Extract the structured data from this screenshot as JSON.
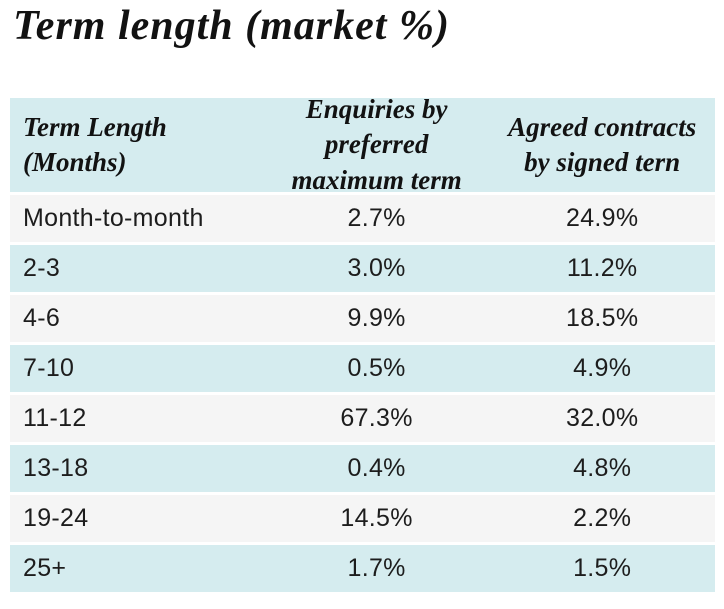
{
  "page": {
    "title": "Term length (market %)"
  },
  "colors": {
    "accent_blue": "#d5ecef",
    "row_gray": "#f5f5f5",
    "text": "#1d1d1d",
    "background": "#ffffff"
  },
  "table": {
    "columns": [
      {
        "line1": "Term Length",
        "line2": "(Months)"
      },
      {
        "line1": "Enquiries by preferred",
        "line2": "maximum term"
      },
      {
        "line1": "Agreed contracts",
        "line2": "by signed tern"
      }
    ],
    "rows": [
      {
        "term": "Month-to-month",
        "enquiries": "2.7%",
        "agreed": "24.9%"
      },
      {
        "term": "2-3",
        "enquiries": "3.0%",
        "agreed": "11.2%"
      },
      {
        "term": "4-6",
        "enquiries": "9.9%",
        "agreed": "18.5%"
      },
      {
        "term": "7-10",
        "enquiries": "0.5%",
        "agreed": "4.9%"
      },
      {
        "term": "11-12",
        "enquiries": "67.3%",
        "agreed": "32.0%"
      },
      {
        "term": "13-18",
        "enquiries": "0.4%",
        "agreed": "4.8%"
      },
      {
        "term": "19-24",
        "enquiries": "14.5%",
        "agreed": "2.2%"
      },
      {
        "term": "25+",
        "enquiries": "1.7%",
        "agreed": "1.5%"
      }
    ]
  },
  "chart_data": {
    "type": "table",
    "title": "Term length (market %)",
    "columns": [
      "Term Length (Months)",
      "Enquiries by preferred maximum term",
      "Agreed contracts by signed tern"
    ],
    "categories": [
      "Month-to-month",
      "2-3",
      "4-6",
      "7-10",
      "11-12",
      "13-18",
      "19-24",
      "25+"
    ],
    "series": [
      {
        "name": "Enquiries by preferred maximum term",
        "values": [
          2.7,
          3.0,
          9.9,
          0.5,
          67.3,
          0.4,
          14.5,
          1.7
        ]
      },
      {
        "name": "Agreed contracts by signed tern",
        "values": [
          24.9,
          11.2,
          18.5,
          4.9,
          32.0,
          4.8,
          2.2,
          1.5
        ]
      }
    ],
    "unit": "%"
  }
}
